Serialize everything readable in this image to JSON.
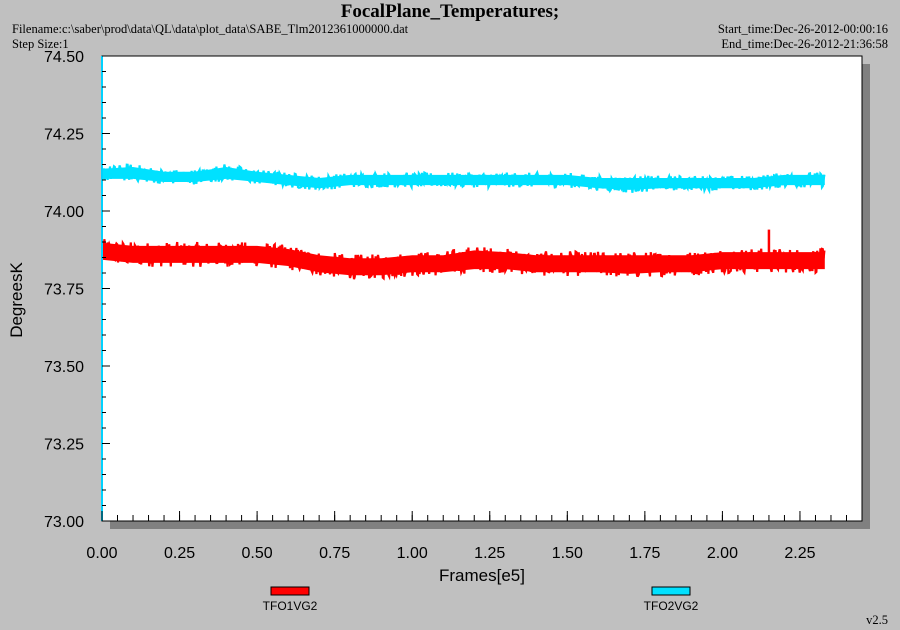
{
  "header": {
    "title": "FocalPlane_Temperatures;",
    "filename": "Filename:c:\\saber\\prod\\data\\QL\\data\\plot_data\\SABE_Tlm2012361000000.dat",
    "step_size": "Step Size:1",
    "start_time": "Start_time:Dec-26-2012-00:00:16",
    "end_time": "End_time:Dec-26-2012-21:36:58"
  },
  "footer": {
    "version": "v2.5"
  },
  "colors": {
    "background": "#c0c0c0",
    "plot_bg": "#ffffff",
    "TFO1VG2": "#ff0000",
    "TFO2VG2": "#00e1ff",
    "axis": "#00d2ff"
  },
  "chart_data": {
    "type": "line",
    "title": "FocalPlane_Temperatures;",
    "xlabel": "Frames[e5]",
    "ylabel": "DegreesK",
    "xlim": [
      0.0,
      2.45
    ],
    "ylim": [
      73.0,
      74.5
    ],
    "x_ticks": [
      "0.00",
      "0.25",
      "0.50",
      "0.75",
      "1.00",
      "1.25",
      "1.50",
      "1.75",
      "2.00",
      "2.25"
    ],
    "y_ticks": [
      "73.00",
      "73.25",
      "73.50",
      "73.75",
      "74.00",
      "74.25",
      "74.50"
    ],
    "grid": false,
    "legend_position": "bottom",
    "series": [
      {
        "name": "TFO1VG2",
        "color": "#ff0000",
        "x": [
          0.0,
          0.1,
          0.2,
          0.3,
          0.4,
          0.5,
          0.6,
          0.7,
          0.8,
          0.9,
          1.0,
          1.1,
          1.2,
          1.3,
          1.4,
          1.5,
          1.6,
          1.7,
          1.8,
          1.9,
          2.0,
          2.1,
          2.2,
          2.33
        ],
        "mean": [
          73.87,
          73.86,
          73.86,
          73.86,
          73.86,
          73.86,
          73.85,
          73.83,
          73.82,
          73.82,
          73.83,
          73.83,
          73.84,
          73.84,
          73.83,
          73.83,
          73.83,
          73.83,
          73.83,
          73.83,
          73.84,
          73.84,
          73.84,
          73.84
        ],
        "min": [
          73.82,
          73.81,
          73.81,
          73.81,
          73.81,
          73.81,
          73.8,
          73.78,
          73.77,
          73.77,
          73.78,
          73.78,
          73.79,
          73.79,
          73.78,
          73.78,
          73.78,
          73.77,
          73.78,
          73.78,
          73.79,
          73.79,
          73.79,
          73.79
        ],
        "max": [
          73.92,
          73.91,
          73.91,
          73.91,
          73.91,
          73.91,
          73.9,
          73.88,
          73.87,
          73.87,
          73.88,
          73.88,
          73.9,
          73.89,
          73.88,
          73.88,
          73.88,
          73.88,
          73.88,
          73.88,
          73.89,
          73.89,
          73.89,
          73.89
        ],
        "spikes": [
          [
            2.15,
            73.94
          ]
        ]
      },
      {
        "name": "TFO2VG2",
        "color": "#00e1ff",
        "x": [
          0.0,
          0.1,
          0.2,
          0.3,
          0.4,
          0.5,
          0.6,
          0.7,
          0.8,
          0.9,
          1.0,
          1.1,
          1.2,
          1.3,
          1.4,
          1.5,
          1.6,
          1.7,
          1.8,
          1.9,
          2.0,
          2.1,
          2.2,
          2.33
        ],
        "mean": [
          74.12,
          74.12,
          74.11,
          74.11,
          74.12,
          74.11,
          74.1,
          74.09,
          74.1,
          74.1,
          74.1,
          74.1,
          74.1,
          74.1,
          74.1,
          74.1,
          74.09,
          74.09,
          74.09,
          74.09,
          74.09,
          74.09,
          74.1,
          74.1
        ],
        "min": [
          74.09,
          74.09,
          74.08,
          74.08,
          74.09,
          74.08,
          74.07,
          74.06,
          74.07,
          74.07,
          74.07,
          74.07,
          74.07,
          74.07,
          74.07,
          74.07,
          74.06,
          74.05,
          74.06,
          74.06,
          74.06,
          74.06,
          74.07,
          74.07
        ],
        "max": [
          74.15,
          74.16,
          74.14,
          74.14,
          74.16,
          74.14,
          74.13,
          74.12,
          74.13,
          74.13,
          74.13,
          74.13,
          74.13,
          74.13,
          74.13,
          74.13,
          74.12,
          74.12,
          74.12,
          74.12,
          74.12,
          74.12,
          74.13,
          74.13
        ],
        "spikes": []
      }
    ]
  }
}
